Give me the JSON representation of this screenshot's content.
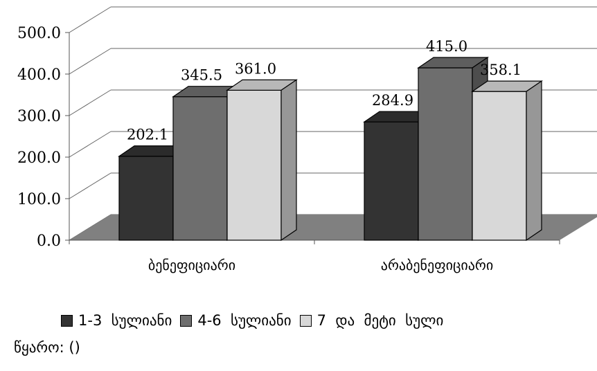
{
  "chart_data": {
    "type": "bar",
    "categories": [
      "ბენეფიციარი",
      "არაბენეფიციარი"
    ],
    "series": [
      {
        "name": "1-3  სულიანი",
        "values": [
          202.1,
          284.9
        ],
        "color": "#333333"
      },
      {
        "name": "4-6  სულიანი",
        "values": [
          345.5,
          415.0
        ],
        "color": "#6e6e6e"
      },
      {
        "name": "7  და  მეტი  სული",
        "values": [
          361.0,
          358.1
        ],
        "color": "#d8d8d8"
      }
    ],
    "value_labels": [
      [
        "202.1",
        "284.9"
      ],
      [
        "345.5",
        "415.0"
      ],
      [
        "361.0",
        "358.1"
      ]
    ],
    "yticks": [
      "0.0",
      "100.0",
      "200.0",
      "300.0",
      "400.0",
      "500.0"
    ],
    "ylim": [
      0,
      500
    ],
    "grid": true,
    "three_d": true,
    "legend_position": "bottom",
    "floor_color": "#808080"
  },
  "source": "წყარო: ()"
}
